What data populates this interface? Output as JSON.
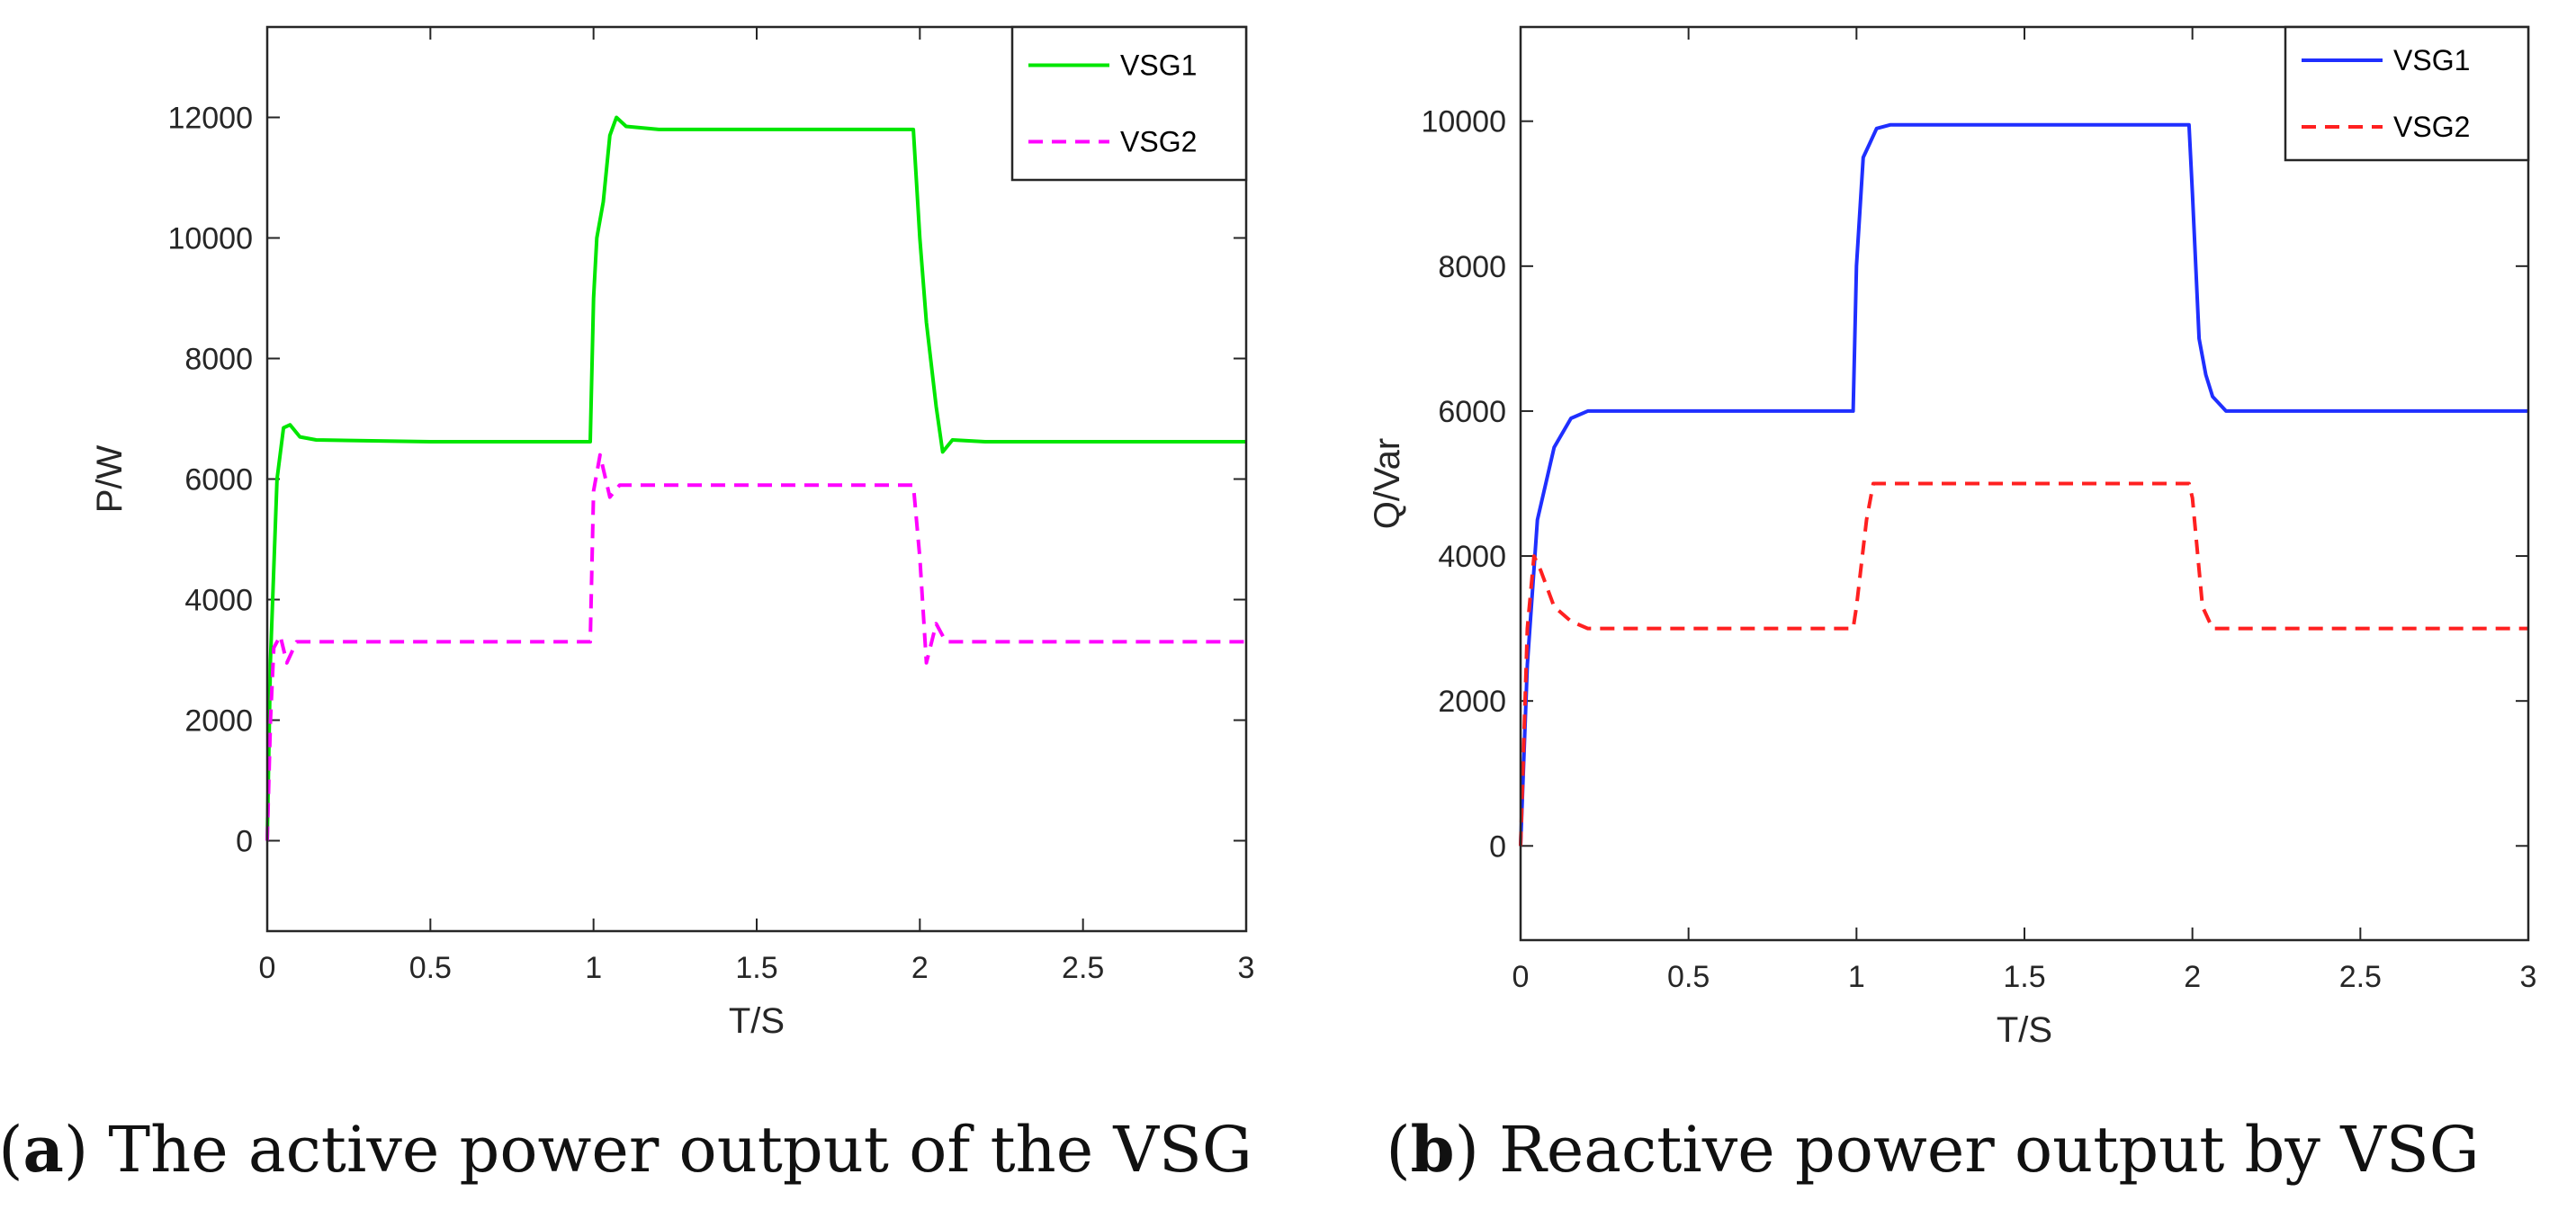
{
  "chart_data": [
    {
      "type": "line",
      "id": "a",
      "caption_letter": "a",
      "caption_text": "The active power output of the VSG",
      "xlabel": "T/S",
      "ylabel": "P/W",
      "xlim": [
        0,
        3
      ],
      "ylim": [
        -1500,
        13500
      ],
      "xticks": [
        0,
        0.5,
        1,
        1.5,
        2,
        2.5,
        3
      ],
      "xtick_labels": [
        "0",
        "0.5",
        "1",
        "1.5",
        "2",
        "2.5",
        "3"
      ],
      "yticks": [
        0,
        2000,
        4000,
        6000,
        8000,
        10000,
        12000
      ],
      "ytick_labels": [
        "0",
        "2000",
        "4000",
        "6000",
        "8000",
        "10000",
        "12000"
      ],
      "legend_position": "top-right",
      "series": [
        {
          "name": "VSG1",
          "color": "#00e600",
          "style": "solid",
          "points": [
            [
              0,
              0
            ],
            [
              0.01,
              3000
            ],
            [
              0.03,
              6000
            ],
            [
              0.05,
              6850
            ],
            [
              0.07,
              6900
            ],
            [
              0.1,
              6700
            ],
            [
              0.15,
              6650
            ],
            [
              0.5,
              6620
            ],
            [
              0.99,
              6620
            ],
            [
              1.0,
              9000
            ],
            [
              1.01,
              10000
            ],
            [
              1.03,
              10600
            ],
            [
              1.05,
              11700
            ],
            [
              1.07,
              12000
            ],
            [
              1.1,
              11850
            ],
            [
              1.2,
              11800
            ],
            [
              1.98,
              11800
            ],
            [
              2.0,
              10000
            ],
            [
              2.02,
              8600
            ],
            [
              2.05,
              7200
            ],
            [
              2.07,
              6450
            ],
            [
              2.1,
              6650
            ],
            [
              2.2,
              6620
            ],
            [
              3.0,
              6620
            ]
          ]
        },
        {
          "name": "VSG2",
          "color": "#ff00ff",
          "style": "dashed",
          "points": [
            [
              0,
              0
            ],
            [
              0.01,
              2000
            ],
            [
              0.02,
              3200
            ],
            [
              0.04,
              3400
            ],
            [
              0.06,
              2950
            ],
            [
              0.09,
              3300
            ],
            [
              0.2,
              3300
            ],
            [
              0.99,
              3300
            ],
            [
              1.0,
              5800
            ],
            [
              1.02,
              6400
            ],
            [
              1.05,
              5700
            ],
            [
              1.08,
              5900
            ],
            [
              1.98,
              5900
            ],
            [
              2.0,
              4700
            ],
            [
              2.02,
              2950
            ],
            [
              2.05,
              3600
            ],
            [
              2.08,
              3300
            ],
            [
              3.0,
              3300
            ]
          ]
        }
      ]
    },
    {
      "type": "line",
      "id": "b",
      "caption_letter": "b",
      "caption_text": "Reactive power output by VSG",
      "xlabel": "T/S",
      "ylabel": "Q/Var",
      "xlim": [
        0,
        3
      ],
      "ylim": [
        -1300,
        11300
      ],
      "xticks": [
        0,
        0.5,
        1,
        1.5,
        2,
        2.5,
        3
      ],
      "xtick_labels": [
        "0",
        "0.5",
        "1",
        "1.5",
        "2",
        "2.5",
        "3"
      ],
      "yticks": [
        0,
        2000,
        4000,
        6000,
        8000,
        10000
      ],
      "ytick_labels": [
        "0",
        "2000",
        "4000",
        "6000",
        "8000",
        "10000"
      ],
      "legend_position": "top-right",
      "series": [
        {
          "name": "VSG1",
          "color": "#1f2fff",
          "style": "solid",
          "points": [
            [
              0,
              0
            ],
            [
              0.02,
              2500
            ],
            [
              0.05,
              4500
            ],
            [
              0.1,
              5500
            ],
            [
              0.15,
              5900
            ],
            [
              0.2,
              6000
            ],
            [
              0.99,
              6000
            ],
            [
              1.0,
              8000
            ],
            [
              1.02,
              9500
            ],
            [
              1.04,
              9700
            ],
            [
              1.06,
              9900
            ],
            [
              1.1,
              9950
            ],
            [
              1.99,
              9950
            ],
            [
              2.0,
              9000
            ],
            [
              2.02,
              7000
            ],
            [
              2.04,
              6500
            ],
            [
              2.06,
              6200
            ],
            [
              2.1,
              6000
            ],
            [
              3.0,
              6000
            ]
          ]
        },
        {
          "name": "VSG2",
          "color": "#ff2020",
          "style": "dashed",
          "points": [
            [
              0,
              0
            ],
            [
              0.02,
              3000
            ],
            [
              0.04,
              4000
            ],
            [
              0.06,
              3800
            ],
            [
              0.1,
              3300
            ],
            [
              0.15,
              3100
            ],
            [
              0.2,
              3000
            ],
            [
              0.99,
              3000
            ],
            [
              1.0,
              3300
            ],
            [
              1.03,
              4500
            ],
            [
              1.05,
              5000
            ],
            [
              1.1,
              5000
            ],
            [
              1.99,
              5000
            ],
            [
              2.0,
              4800
            ],
            [
              2.03,
              3300
            ],
            [
              2.06,
              3000
            ],
            [
              3.0,
              3000
            ]
          ]
        }
      ]
    }
  ]
}
